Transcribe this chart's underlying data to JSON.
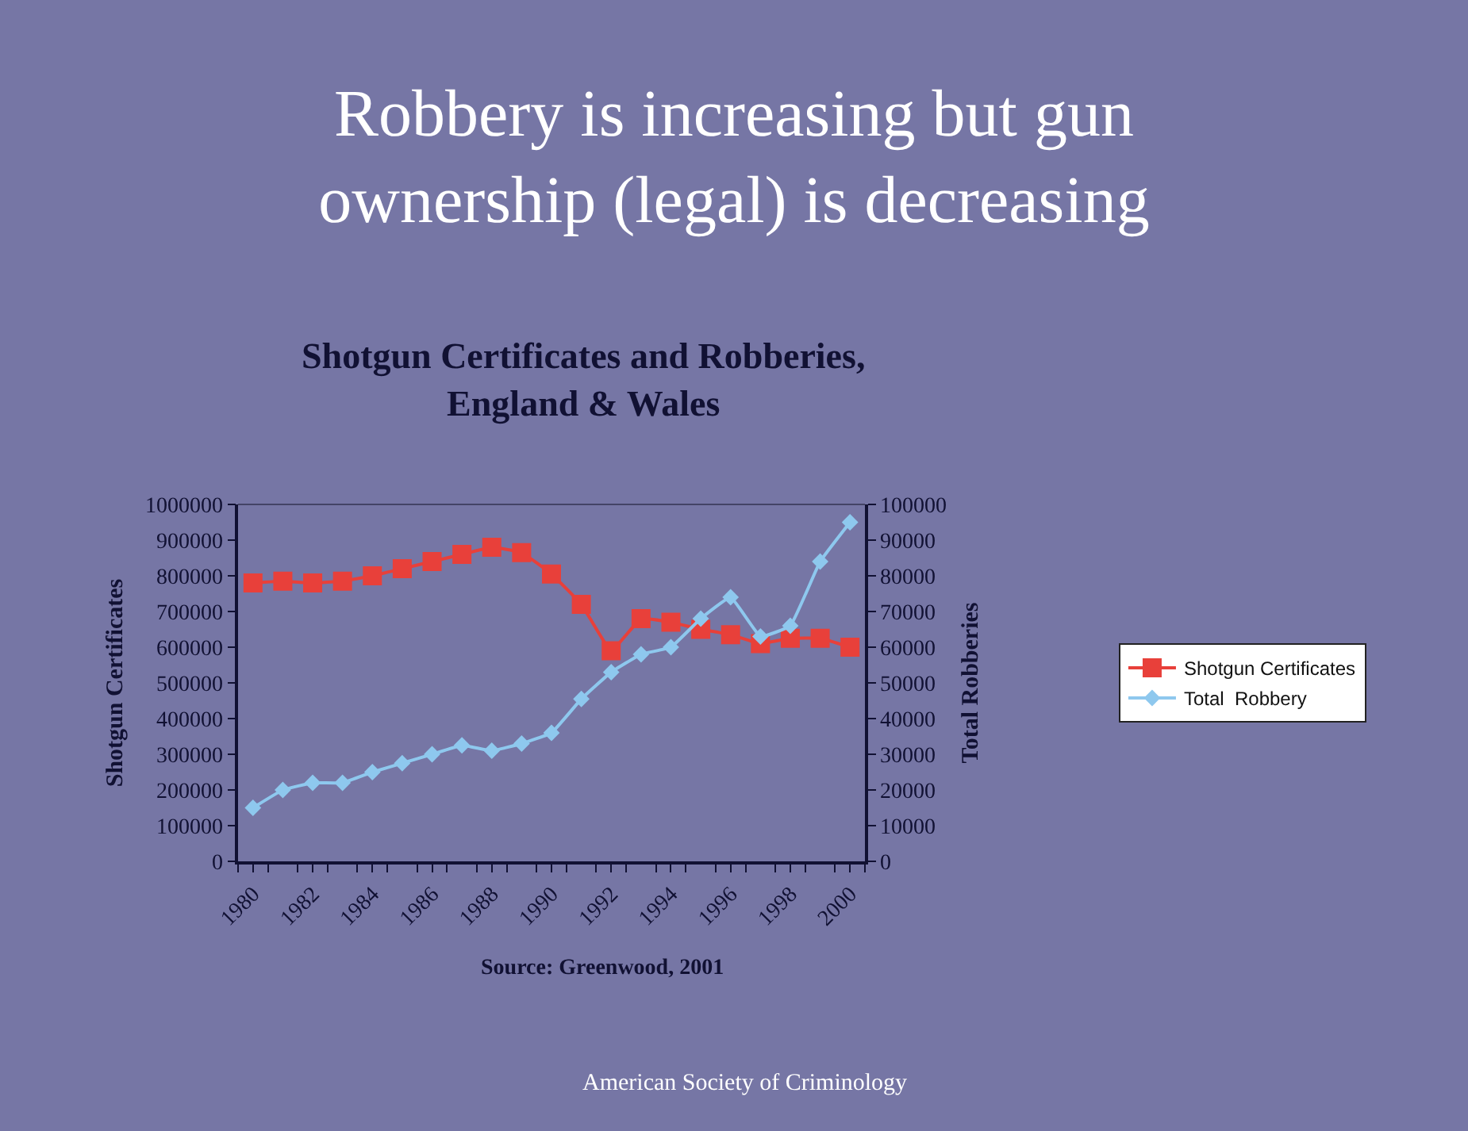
{
  "chart_data": {
    "type": "line",
    "title": "Robbery is increasing but gun ownership (legal) is decreasing",
    "subtitle": "Shotgun Certificates and Robberies, England & Wales",
    "ylabel": "Shotgun Certificates",
    "y2label": "Total Robberies",
    "annotations": [
      "Source: Greenwood, 2001",
      "American Society of Criminology"
    ],
    "categories": [
      "1980",
      null,
      "1982",
      null,
      "1984",
      null,
      "1986",
      null,
      "1988",
      null,
      "1990",
      null,
      "1992",
      null,
      "1994",
      null,
      "1996",
      null,
      "1998",
      null,
      "2000"
    ],
    "series": [
      {
        "name": "Shotgun Certificates",
        "color": "#e8403a",
        "marker": "square",
        "values": [
          780000,
          785000,
          780000,
          785000,
          800000,
          820000,
          840000,
          860000,
          880000,
          865000,
          805000,
          720000,
          590000,
          680000,
          670000,
          650000,
          635000,
          610000,
          625000,
          625000,
          600000
        ]
      },
      {
        "name": "Total  Robbery",
        "color": "#8ec8ee",
        "marker": "diamond",
        "axis": "y2",
        "values": [
          15000,
          20000,
          22000,
          22000,
          25000,
          27500,
          30000,
          32500,
          31000,
          33000,
          36000,
          45500,
          53000,
          58000,
          60000,
          68000,
          74000,
          63000,
          66000,
          84000,
          95000
        ]
      }
    ],
    "ylim": [
      0,
      1000000
    ],
    "yticks": [
      0,
      100000,
      200000,
      300000,
      400000,
      500000,
      600000,
      700000,
      800000,
      900000,
      1000000
    ],
    "y2lim": [
      0,
      100000
    ],
    "y2ticks": [
      0,
      10000,
      20000,
      30000,
      40000,
      50000,
      60000,
      70000,
      80000,
      90000,
      100000
    ],
    "grid": false,
    "legend": "right"
  }
}
